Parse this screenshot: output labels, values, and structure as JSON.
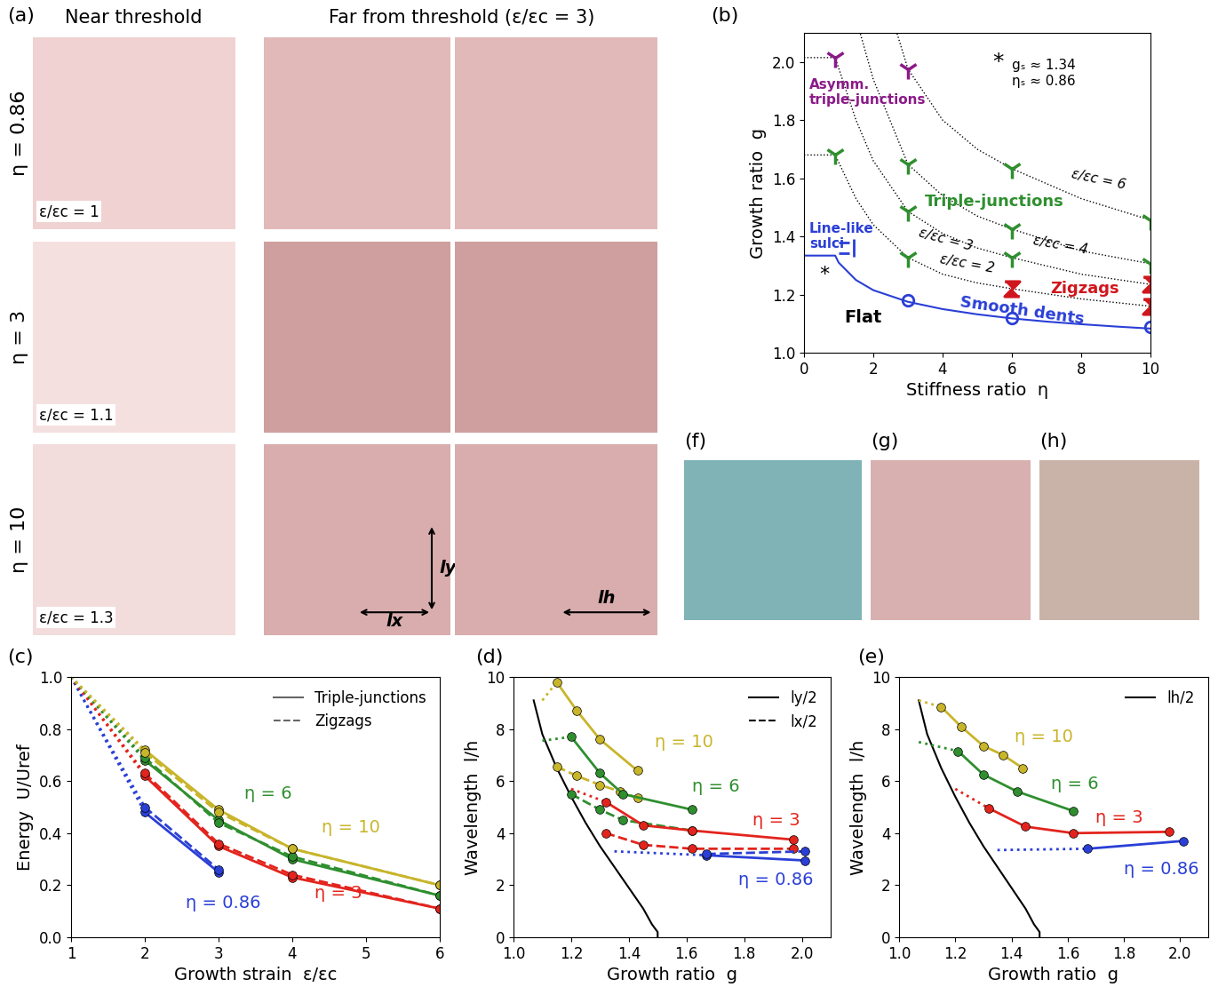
{
  "panel_labels": [
    "(a)",
    "(b)",
    "(c)",
    "(d)",
    "(e)",
    "(f)",
    "(g)",
    "(h)"
  ],
  "image_panels": {
    "column_titles": [
      "Near threshold",
      "Far from threshold (ε/εc = 3)"
    ],
    "row_labels": [
      "η = 0.86",
      "η = 3",
      "η = 10"
    ],
    "near_threshold_labels": [
      "ε/εc = 1",
      "ε/εc = 1.1",
      "ε/εc = 1.3"
    ],
    "length_labels": [
      "lx",
      "ly",
      "lh"
    ]
  },
  "chart_data": [
    {
      "type": "phase_diagram",
      "xlabel": "Stiffness ratio  η",
      "ylabel": "Growth ratio  g",
      "xlim": [
        0,
        10
      ],
      "ylim": [
        1.0,
        2.1
      ],
      "xticks": [
        0,
        2,
        4,
        6,
        8,
        10
      ],
      "yticks": [
        1.0,
        1.2,
        1.4,
        1.6,
        1.8,
        2.0
      ],
      "boundary": {
        "color": "#2a3fd6",
        "x": [
          0,
          0.9,
          1,
          1.5,
          2,
          3,
          4,
          5,
          6,
          7,
          8,
          9,
          10
        ],
        "values": [
          1.334,
          1.334,
          1.31,
          1.25,
          1.215,
          1.175,
          1.15,
          1.132,
          1.118,
          1.107,
          1.098,
          1.09,
          1.083
        ]
      },
      "contours": [
        {
          "name": "ε/εc = 2",
          "x": [
            0,
            0.9,
            1.5,
            2,
            3,
            4,
            5,
            6,
            8,
            10
          ],
          "values": [
            1.68,
            1.68,
            1.53,
            1.44,
            1.327,
            1.27,
            1.24,
            1.22,
            1.185,
            1.16
          ]
        },
        {
          "name": "ε/εc = 3",
          "x": [
            0,
            0.9,
            1.5,
            2,
            3,
            4,
            5,
            6,
            8,
            10
          ],
          "values": [
            2.015,
            2.015,
            1.8,
            1.66,
            1.486,
            1.41,
            1.36,
            1.327,
            1.27,
            1.235
          ]
        },
        {
          "name": "ε/εc = 4",
          "x": [
            1.2,
            1.5,
            2,
            3,
            4,
            5,
            6,
            8,
            10
          ],
          "values": [
            2.3,
            2.15,
            1.94,
            1.648,
            1.54,
            1.47,
            1.425,
            1.35,
            1.306
          ]
        },
        {
          "name": "ε/εc = 6",
          "x": [
            2.2,
            2.5,
            3,
            4,
            5,
            6,
            8,
            10
          ],
          "values": [
            2.3,
            2.17,
            1.976,
            1.8,
            1.7,
            1.633,
            1.53,
            1.456
          ]
        }
      ],
      "series": [
        {
          "name": "Asymm.\ntriple-junctions",
          "color": "#8b1a89",
          "marker": "tri_down",
          "x": [
            0.9,
            3
          ],
          "values": [
            2.015,
            1.976
          ]
        },
        {
          "name": "Triple-junctions",
          "color": "#2f8f2f",
          "marker": "tri_down",
          "x": [
            0.9,
            3,
            3,
            3,
            6,
            6,
            6,
            10,
            10
          ],
          "values": [
            1.68,
            1.648,
            1.486,
            1.327,
            1.633,
            1.425,
            1.327,
            1.456,
            1.306
          ]
        },
        {
          "name": "Zigzags",
          "color": "#d0161d",
          "marker": "zigzag",
          "x": [
            6,
            10,
            10
          ],
          "values": [
            1.22,
            1.235,
            1.16
          ]
        },
        {
          "name": "Smooth dents",
          "color": "#2a3fd6",
          "marker": "circle",
          "x": [
            3,
            6,
            10
          ],
          "values": [
            1.18,
            1.12,
            1.09
          ]
        },
        {
          "name": "Line-like\nsulci",
          "color": "#2a3fd6",
          "marker": "line",
          "x": [
            1.25
          ],
          "values": [
            1.36
          ]
        }
      ],
      "annotations": [
        {
          "text": "Flat",
          "color": "#000000"
        },
        {
          "text": "*",
          "color": "#000000"
        },
        {
          "text": "*",
          "color": "#000000"
        },
        {
          "text": "gₛ ≈ 1.34",
          "color": "#000000"
        },
        {
          "text": "ηₛ ≈ 0.86",
          "color": "#000000"
        }
      ]
    },
    {
      "type": "line",
      "xlabel": "Growth strain  ε/εc",
      "ylabel": "Energy  U/Uref",
      "xlim": [
        1,
        6
      ],
      "ylim": [
        0.0,
        1.0
      ],
      "xticks": [
        1,
        2,
        3,
        4,
        5,
        6
      ],
      "yticks": [
        0.0,
        0.2,
        0.4,
        0.6,
        0.8,
        1.0
      ],
      "legend": "upper right",
      "legend_entries": [
        {
          "name": "Triple-junctions",
          "line_style": "solid"
        },
        {
          "name": "Zigzags",
          "line_style": "dashed"
        }
      ],
      "groups": [
        {
          "label": "η = 0.86",
          "color": "#2a3fd6",
          "lines": [
            {
              "line_style": "solid",
              "lead_x": 1,
              "lead_value": 1.0,
              "x": [
                2,
                3
              ],
              "values": [
                0.48,
                0.25
              ]
            },
            {
              "line_style": "dashed",
              "lead_x": 1,
              "lead_value": 1.0,
              "x": [
                2,
                3
              ],
              "values": [
                0.5,
                0.26
              ]
            }
          ]
        },
        {
          "label": "η = 3",
          "color": "#e3241d",
          "lines": [
            {
              "line_style": "solid",
              "lead_x": 1,
              "lead_value": 1.0,
              "x": [
                2,
                3,
                4,
                6
              ],
              "values": [
                0.62,
                0.35,
                0.23,
                0.11
              ]
            },
            {
              "line_style": "dashed",
              "lead_x": 1,
              "lead_value": 1.0,
              "x": [
                2,
                3,
                4,
                6
              ],
              "values": [
                0.63,
                0.36,
                0.24,
                0.11
              ]
            }
          ]
        },
        {
          "label": "η = 6",
          "color": "#2f8f2f",
          "lines": [
            {
              "line_style": "solid",
              "lead_x": 1,
              "lead_value": 1.0,
              "x": [
                2,
                3,
                4,
                6
              ],
              "values": [
                0.68,
                0.45,
                0.3,
                0.16
              ]
            },
            {
              "line_style": "dashed",
              "lead_x": 1,
              "lead_value": 1.0,
              "x": [
                2,
                3,
                4,
                6
              ],
              "values": [
                0.69,
                0.44,
                0.31,
                0.16
              ]
            }
          ]
        },
        {
          "label": "η = 10",
          "color": "#c8b52a",
          "lines": [
            {
              "line_style": "solid",
              "lead_x": 1,
              "lead_value": 1.0,
              "x": [
                2,
                3,
                4,
                6
              ],
              "values": [
                0.72,
                0.49,
                0.34,
                0.2
              ]
            },
            {
              "line_style": "dashed",
              "lead_x": 1,
              "lead_value": 1.0,
              "x": [
                2,
                3,
                4,
                6
              ],
              "values": [
                0.71,
                0.48,
                0.34,
                0.2
              ]
            }
          ]
        }
      ]
    },
    {
      "type": "line",
      "xlabel": "Growth ratio  g",
      "ylabel": "Wavelength  l/h",
      "xlim": [
        1.0,
        2.1
      ],
      "ylim": [
        0,
        10
      ],
      "xticks": [
        1.0,
        1.2,
        1.4,
        1.6,
        1.8,
        2.0
      ],
      "yticks": [
        0,
        2,
        4,
        6,
        8,
        10
      ],
      "legend": "upper right",
      "legend_entries": [
        {
          "name": "ly/2",
          "line_style": "solid"
        },
        {
          "name": "lx/2",
          "line_style": "dashed"
        }
      ],
      "theory": {
        "color": "#000000",
        "x": [
          1.07,
          1.1,
          1.15,
          1.2,
          1.25,
          1.3,
          1.35,
          1.4,
          1.45,
          1.48,
          1.5,
          1.5
        ],
        "values": [
          9.1,
          7.8,
          6.5,
          5.4,
          4.4,
          3.5,
          2.7,
          1.9,
          1.1,
          0.5,
          0.2,
          0
        ]
      },
      "groups": [
        {
          "label": "η = 10",
          "color": "#c8b52a",
          "lines": [
            {
              "line_style": "solid",
              "lead_x": 1.1,
              "lead_value": 9.1,
              "x": [
                1.15,
                1.22,
                1.3,
                1.43
              ],
              "values": [
                9.8,
                8.7,
                7.6,
                6.4
              ]
            },
            {
              "line_style": "dashed",
              "lead_x": null,
              "lead_value": null,
              "x": [
                1.15,
                1.22,
                1.3,
                1.37,
                1.43
              ],
              "values": [
                6.55,
                6.2,
                5.85,
                5.6,
                5.35
              ]
            }
          ]
        },
        {
          "label": "η = 6",
          "color": "#2f8f2f",
          "lines": [
            {
              "line_style": "solid",
              "lead_x": 1.1,
              "lead_value": 7.55,
              "x": [
                1.2,
                1.3,
                1.38,
                1.62
              ],
              "values": [
                7.7,
                6.3,
                5.5,
                4.9
              ]
            },
            {
              "line_style": "dashed",
              "lead_x": null,
              "lead_value": null,
              "x": [
                1.2,
                1.3,
                1.38,
                1.62
              ],
              "values": [
                5.5,
                4.9,
                4.5,
                4.1
              ]
            }
          ]
        },
        {
          "label": "η = 3",
          "color": "#e3241d",
          "lines": [
            {
              "line_style": "solid",
              "lead_x": 1.2,
              "lead_value": 5.7,
              "x": [
                1.32,
                1.45,
                1.62,
                1.97
              ],
              "values": [
                5.2,
                4.3,
                4.1,
                3.75
              ]
            },
            {
              "line_style": "dashed",
              "lead_x": null,
              "lead_value": null,
              "x": [
                1.32,
                1.45,
                1.62,
                1.97
              ],
              "values": [
                4.0,
                3.55,
                3.4,
                3.4
              ]
            }
          ]
        },
        {
          "label": "η = 0.86",
          "color": "#2a3fd6",
          "lines": [
            {
              "line_style": "solid",
              "lead_x": 1.35,
              "lead_value": 3.3,
              "x": [
                1.67,
                2.01
              ],
              "values": [
                3.15,
                2.95
              ]
            },
            {
              "line_style": "dashed",
              "lead_x": null,
              "lead_value": null,
              "x": [
                1.67,
                2.01
              ],
              "values": [
                3.2,
                3.3
              ]
            }
          ]
        }
      ]
    },
    {
      "type": "line",
      "xlabel": "Growth ratio  g",
      "ylabel": "Wavelength  l/h",
      "xlim": [
        1.0,
        2.1
      ],
      "ylim": [
        0,
        10
      ],
      "xticks": [
        1.0,
        1.2,
        1.4,
        1.6,
        1.8,
        2.0
      ],
      "yticks": [
        0,
        2,
        4,
        6,
        8,
        10
      ],
      "legend": "upper right",
      "legend_entries": [
        {
          "name": "lh/2",
          "line_style": "solid"
        }
      ],
      "theory": {
        "color": "#000000",
        "x": [
          1.07,
          1.1,
          1.15,
          1.2,
          1.25,
          1.3,
          1.35,
          1.4,
          1.45,
          1.48,
          1.5,
          1.5
        ],
        "values": [
          9.1,
          7.8,
          6.5,
          5.4,
          4.4,
          3.5,
          2.7,
          1.9,
          1.1,
          0.5,
          0.2,
          0
        ]
      },
      "groups": [
        {
          "label": "η = 10",
          "color": "#c8b52a",
          "lines": [
            {
              "line_style": "solid",
              "lead_x": 1.07,
              "lead_value": 9.1,
              "x": [
                1.15,
                1.22,
                1.3,
                1.37,
                1.44
              ],
              "values": [
                8.85,
                8.1,
                7.35,
                7.0,
                6.5
              ]
            }
          ]
        },
        {
          "label": "η = 6",
          "color": "#2f8f2f",
          "lines": [
            {
              "line_style": "solid",
              "lead_x": 1.07,
              "lead_value": 7.5,
              "x": [
                1.21,
                1.3,
                1.42,
                1.62
              ],
              "values": [
                7.15,
                6.25,
                5.6,
                4.85
              ]
            }
          ]
        },
        {
          "label": "η = 3",
          "color": "#e3241d",
          "lines": [
            {
              "line_style": "solid",
              "lead_x": 1.2,
              "lead_value": 5.7,
              "x": [
                1.32,
                1.45,
                1.62,
                1.96
              ],
              "values": [
                4.95,
                4.25,
                4.0,
                4.05
              ]
            }
          ]
        },
        {
          "label": "η = 0.86",
          "color": "#2a3fd6",
          "lines": [
            {
              "line_style": "solid",
              "lead_x": 1.35,
              "lead_value": 3.35,
              "x": [
                1.67,
                2.01
              ],
              "values": [
                3.4,
                3.7
              ]
            }
          ]
        }
      ]
    }
  ]
}
